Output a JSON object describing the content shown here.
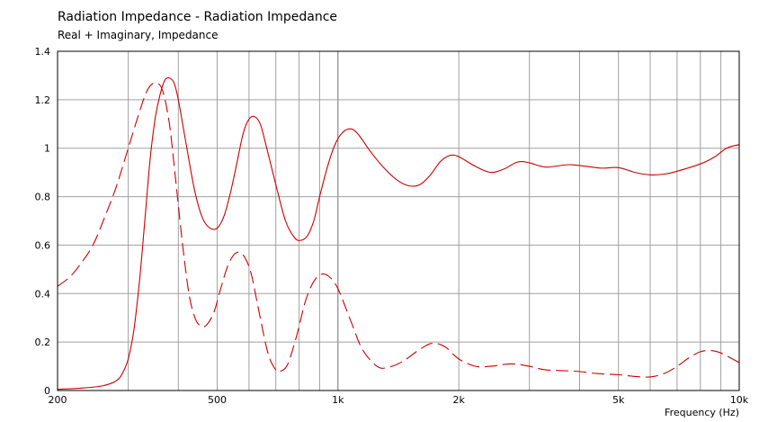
{
  "title": "Radiation Impedance - Radiation Impedance",
  "subtitle": "Real + Imaginary, Impedance",
  "chart_data": {
    "type": "line",
    "title": "Radiation Impedance - Radiation Impedance",
    "subtitle": "Real + Imaginary, Impedance",
    "xlabel": "Frequency  (Hz)",
    "ylabel": "",
    "xscale": "log",
    "xlim": [
      200,
      10000
    ],
    "ylim": [
      0,
      1.4
    ],
    "grid": true,
    "x_tick_labels": [
      {
        "value": 200,
        "label": "200"
      },
      {
        "value": 500,
        "label": "500"
      },
      {
        "value": 1000,
        "label": "1k"
      },
      {
        "value": 2000,
        "label": "2k"
      },
      {
        "value": 5000,
        "label": "5k"
      },
      {
        "value": 10000,
        "label": "10k"
      }
    ],
    "x_grid_values": [
      200,
      300,
      400,
      500,
      600,
      700,
      800,
      900,
      1000,
      2000,
      3000,
      4000,
      5000,
      6000,
      7000,
      8000,
      9000,
      10000
    ],
    "y_ticks": [
      {
        "value": 0,
        "label": "0"
      },
      {
        "value": 0.2,
        "label": "0.2"
      },
      {
        "value": 0.4,
        "label": "0.4"
      },
      {
        "value": 0.6,
        "label": "0.6"
      },
      {
        "value": 0.8,
        "label": "0.8"
      },
      {
        "value": 1,
        "label": "1"
      },
      {
        "value": 1.2,
        "label": "1.2"
      },
      {
        "value": 1.4,
        "label": "1.4"
      }
    ],
    "color": "#cc0000",
    "series": [
      {
        "style": "solid",
        "points": [
          [
            200,
            0.005
          ],
          [
            230,
            0.01
          ],
          [
            260,
            0.02
          ],
          [
            280,
            0.04
          ],
          [
            290,
            0.07
          ],
          [
            300,
            0.13
          ],
          [
            310,
            0.25
          ],
          [
            320,
            0.45
          ],
          [
            330,
            0.7
          ],
          [
            340,
            0.95
          ],
          [
            350,
            1.12
          ],
          [
            360,
            1.22
          ],
          [
            370,
            1.28
          ],
          [
            380,
            1.29
          ],
          [
            390,
            1.27
          ],
          [
            400,
            1.2
          ],
          [
            420,
            1.0
          ],
          [
            440,
            0.82
          ],
          [
            460,
            0.71
          ],
          [
            480,
            0.67
          ],
          [
            500,
            0.67
          ],
          [
            520,
            0.72
          ],
          [
            540,
            0.82
          ],
          [
            560,
            0.94
          ],
          [
            580,
            1.06
          ],
          [
            600,
            1.12
          ],
          [
            620,
            1.13
          ],
          [
            640,
            1.1
          ],
          [
            660,
            1.02
          ],
          [
            700,
            0.85
          ],
          [
            740,
            0.7
          ],
          [
            780,
            0.63
          ],
          [
            810,
            0.62
          ],
          [
            840,
            0.64
          ],
          [
            870,
            0.7
          ],
          [
            900,
            0.8
          ],
          [
            940,
            0.92
          ],
          [
            980,
            1.01
          ],
          [
            1020,
            1.06
          ],
          [
            1070,
            1.08
          ],
          [
            1120,
            1.06
          ],
          [
            1200,
            0.99
          ],
          [
            1300,
            0.92
          ],
          [
            1400,
            0.87
          ],
          [
            1500,
            0.845
          ],
          [
            1600,
            0.85
          ],
          [
            1700,
            0.89
          ],
          [
            1800,
            0.945
          ],
          [
            1900,
            0.97
          ],
          [
            2000,
            0.965
          ],
          [
            2200,
            0.925
          ],
          [
            2400,
            0.9
          ],
          [
            2600,
            0.915
          ],
          [
            2800,
            0.943
          ],
          [
            3000,
            0.94
          ],
          [
            3300,
            0.922
          ],
          [
            3800,
            0.932
          ],
          [
            4500,
            0.918
          ],
          [
            5000,
            0.92
          ],
          [
            5500,
            0.9
          ],
          [
            6000,
            0.89
          ],
          [
            6500,
            0.893
          ],
          [
            7000,
            0.905
          ],
          [
            8000,
            0.935
          ],
          [
            8700,
            0.965
          ],
          [
            9300,
            1.0
          ],
          [
            10000,
            1.015
          ]
        ]
      },
      {
        "style": "dashed",
        "points": [
          [
            200,
            0.43
          ],
          [
            215,
            0.47
          ],
          [
            230,
            0.53
          ],
          [
            245,
            0.6
          ],
          [
            260,
            0.7
          ],
          [
            280,
            0.84
          ],
          [
            300,
            1.0
          ],
          [
            320,
            1.15
          ],
          [
            335,
            1.24
          ],
          [
            350,
            1.27
          ],
          [
            365,
            1.24
          ],
          [
            380,
            1.1
          ],
          [
            395,
            0.85
          ],
          [
            410,
            0.6
          ],
          [
            425,
            0.4
          ],
          [
            440,
            0.3
          ],
          [
            455,
            0.265
          ],
          [
            470,
            0.27
          ],
          [
            490,
            0.32
          ],
          [
            510,
            0.42
          ],
          [
            530,
            0.51
          ],
          [
            550,
            0.56
          ],
          [
            570,
            0.57
          ],
          [
            590,
            0.54
          ],
          [
            610,
            0.47
          ],
          [
            640,
            0.3
          ],
          [
            670,
            0.15
          ],
          [
            700,
            0.085
          ],
          [
            720,
            0.08
          ],
          [
            750,
            0.11
          ],
          [
            790,
            0.23
          ],
          [
            830,
            0.37
          ],
          [
            870,
            0.45
          ],
          [
            910,
            0.48
          ],
          [
            950,
            0.47
          ],
          [
            1000,
            0.42
          ],
          [
            1080,
            0.28
          ],
          [
            1150,
            0.17
          ],
          [
            1250,
            0.1
          ],
          [
            1330,
            0.095
          ],
          [
            1450,
            0.12
          ],
          [
            1600,
            0.17
          ],
          [
            1720,
            0.195
          ],
          [
            1850,
            0.18
          ],
          [
            2000,
            0.13
          ],
          [
            2200,
            0.1
          ],
          [
            2400,
            0.1
          ],
          [
            2700,
            0.11
          ],
          [
            3000,
            0.1
          ],
          [
            3300,
            0.085
          ],
          [
            3900,
            0.08
          ],
          [
            4400,
            0.07
          ],
          [
            5000,
            0.065
          ],
          [
            5500,
            0.058
          ],
          [
            6000,
            0.056
          ],
          [
            6500,
            0.07
          ],
          [
            7000,
            0.1
          ],
          [
            7500,
            0.135
          ],
          [
            8000,
            0.16
          ],
          [
            8500,
            0.165
          ],
          [
            9000,
            0.155
          ],
          [
            9500,
            0.135
          ],
          [
            10000,
            0.115
          ]
        ]
      }
    ]
  }
}
